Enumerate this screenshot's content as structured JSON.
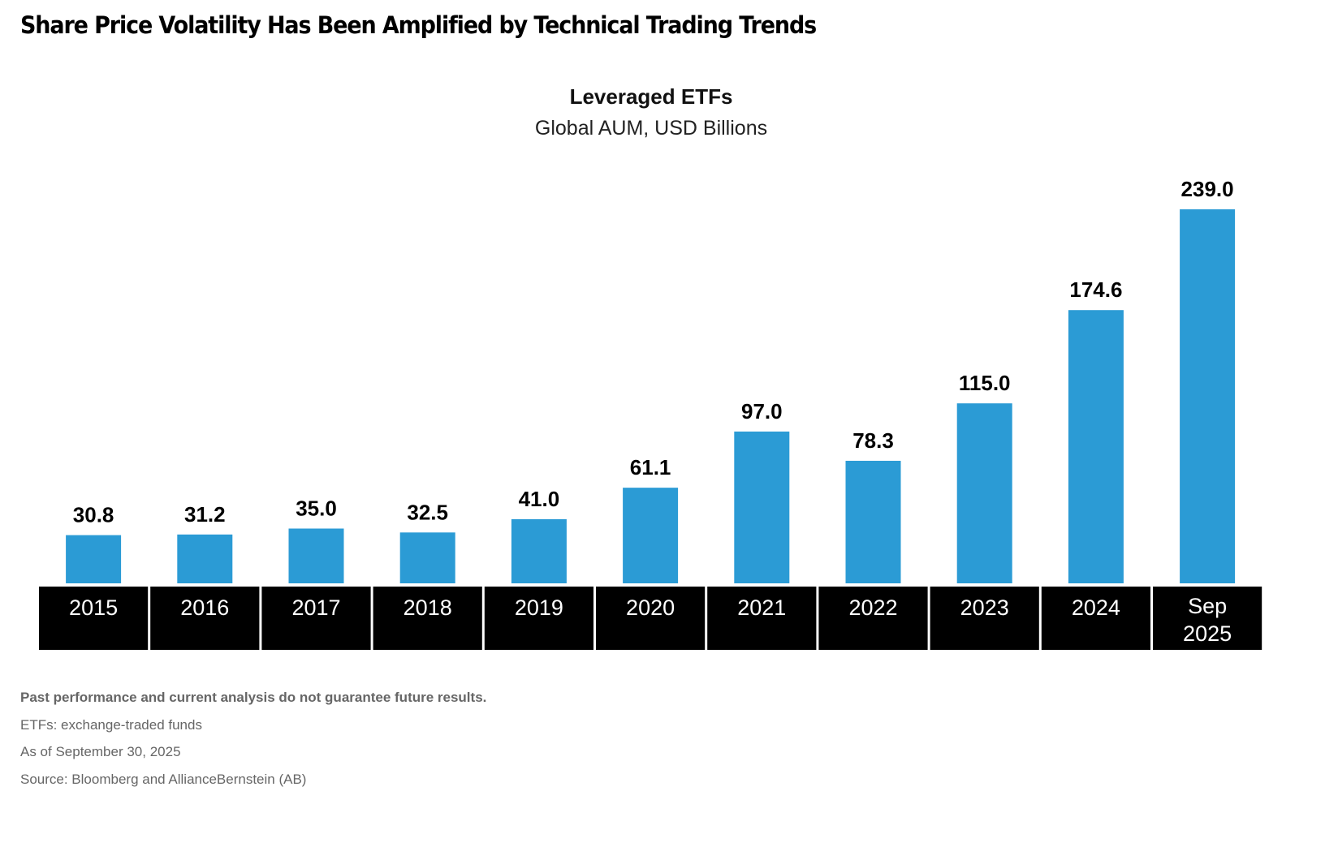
{
  "page": {
    "title": "Share Price Volatility Has Been Amplified by Technical Trading Trends",
    "footnotes": [
      "Past performance and current analysis do not guarantee future results.",
      "ETFs: exchange-traded funds",
      "As of September 30, 2025",
      "Source: Bloomberg and AllianceBernstein (AB)"
    ]
  },
  "chart_data": {
    "type": "bar",
    "title": "Leveraged ETFs",
    "subtitle": "Global AUM, USD Billions",
    "xlabel": "",
    "ylabel": "",
    "categories": [
      "2015",
      "2016",
      "2017",
      "2018",
      "2019",
      "2020",
      "2021",
      "2022",
      "2023",
      "2024",
      "Sep 2025"
    ],
    "category_lines": [
      [
        "2015"
      ],
      [
        "2016"
      ],
      [
        "2017"
      ],
      [
        "2018"
      ],
      [
        "2019"
      ],
      [
        "2020"
      ],
      [
        "2021"
      ],
      [
        "2022"
      ],
      [
        "2023"
      ],
      [
        "2024"
      ],
      [
        "Sep",
        "2025"
      ]
    ],
    "values": [
      30.8,
      31.2,
      35.0,
      32.5,
      41.0,
      61.1,
      97.0,
      78.3,
      115.0,
      174.6,
      239.0
    ],
    "data_labels": [
      "30.8",
      "31.2",
      "35.0",
      "32.5",
      "41.0",
      "61.1",
      "97.0",
      "78.3",
      "115.0",
      "174.6",
      "239.0"
    ],
    "ylim": [
      0,
      239
    ],
    "grid": false,
    "legend": "none",
    "colors": {
      "bar": "#2b9bd5",
      "category_box": "#000000",
      "category_text": "#ffffff",
      "label_text": "#000000"
    }
  }
}
